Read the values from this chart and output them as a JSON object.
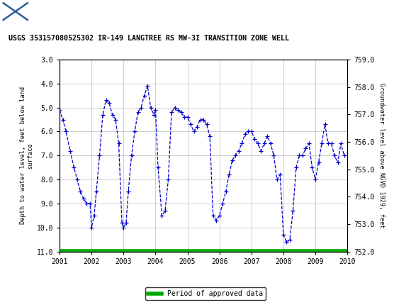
{
  "title": "USGS 353157080525302 IR-149 LANGTREE RS MW-3I TRANSITION ZONE WELL",
  "ylabel_left": "Depth to water level, feet below land\n surface",
  "ylabel_right": "Groundwater level above NGVD 1929, feet",
  "usgs_banner_color": "#1b7a40",
  "line_color": "#0000cc",
  "green_bar_color": "#00aa00",
  "background_color": "#ffffff",
  "grid_color": "#bbbbbb",
  "xlim": [
    2001,
    2010
  ],
  "ylim_left": [
    3.0,
    11.0
  ],
  "ylim_right": [
    752.0,
    759.0
  ],
  "yticks_left": [
    3.0,
    4.0,
    5.0,
    6.0,
    7.0,
    8.0,
    9.0,
    10.0,
    11.0
  ],
  "yticks_right": [
    752.0,
    753.0,
    754.0,
    755.0,
    756.0,
    757.0,
    758.0,
    759.0
  ],
  "xticks": [
    2001,
    2002,
    2003,
    2004,
    2005,
    2006,
    2007,
    2008,
    2009,
    2010
  ],
  "legend_label": "Period of approved data",
  "x": [
    2001.0,
    2001.1,
    2001.2,
    2001.33,
    2001.45,
    2001.55,
    2001.65,
    2001.75,
    2001.85,
    2001.95,
    2002.0,
    2002.08,
    2002.15,
    2002.25,
    2002.35,
    2002.45,
    2002.55,
    2002.65,
    2002.75,
    2002.85,
    2002.95,
    2003.0,
    2003.08,
    2003.15,
    2003.25,
    2003.35,
    2003.45,
    2003.55,
    2003.65,
    2003.75,
    2003.85,
    2003.95,
    2004.0,
    2004.08,
    2004.2,
    2004.3,
    2004.4,
    2004.5,
    2004.6,
    2004.7,
    2004.8,
    2004.9,
    2005.0,
    2005.1,
    2005.2,
    2005.3,
    2005.4,
    2005.5,
    2005.6,
    2005.7,
    2005.8,
    2005.9,
    2006.0,
    2006.1,
    2006.2,
    2006.3,
    2006.4,
    2006.5,
    2006.6,
    2006.7,
    2006.8,
    2006.9,
    2007.0,
    2007.1,
    2007.2,
    2007.3,
    2007.4,
    2007.5,
    2007.6,
    2007.7,
    2007.8,
    2007.9,
    2008.0,
    2008.1,
    2008.2,
    2008.3,
    2008.4,
    2008.5,
    2008.6,
    2008.7,
    2008.8,
    2008.9,
    2009.0,
    2009.1,
    2009.2,
    2009.3,
    2009.4,
    2009.5,
    2009.6,
    2009.7,
    2009.8,
    2009.9
  ],
  "y": [
    5.1,
    5.5,
    6.0,
    6.8,
    7.5,
    8.0,
    8.5,
    8.8,
    9.0,
    9.0,
    10.0,
    9.5,
    8.5,
    7.0,
    5.3,
    4.7,
    4.8,
    5.3,
    5.5,
    6.5,
    9.8,
    10.0,
    9.8,
    8.5,
    7.0,
    6.0,
    5.2,
    5.0,
    4.5,
    4.1,
    5.0,
    5.3,
    5.1,
    7.5,
    9.5,
    9.3,
    8.0,
    5.2,
    5.0,
    5.1,
    5.2,
    5.4,
    5.4,
    5.7,
    6.0,
    5.8,
    5.5,
    5.5,
    5.7,
    6.2,
    9.5,
    9.7,
    9.5,
    9.0,
    8.5,
    7.8,
    7.2,
    7.0,
    6.8,
    6.5,
    6.1,
    6.0,
    6.0,
    6.3,
    6.5,
    6.8,
    6.5,
    6.2,
    6.5,
    7.0,
    8.0,
    7.8,
    10.3,
    10.6,
    10.5,
    9.3,
    7.5,
    7.0,
    7.0,
    6.7,
    6.5,
    7.5,
    8.0,
    7.3,
    6.5,
    5.7,
    6.5,
    6.5,
    7.0,
    7.3,
    6.5,
    7.0
  ]
}
